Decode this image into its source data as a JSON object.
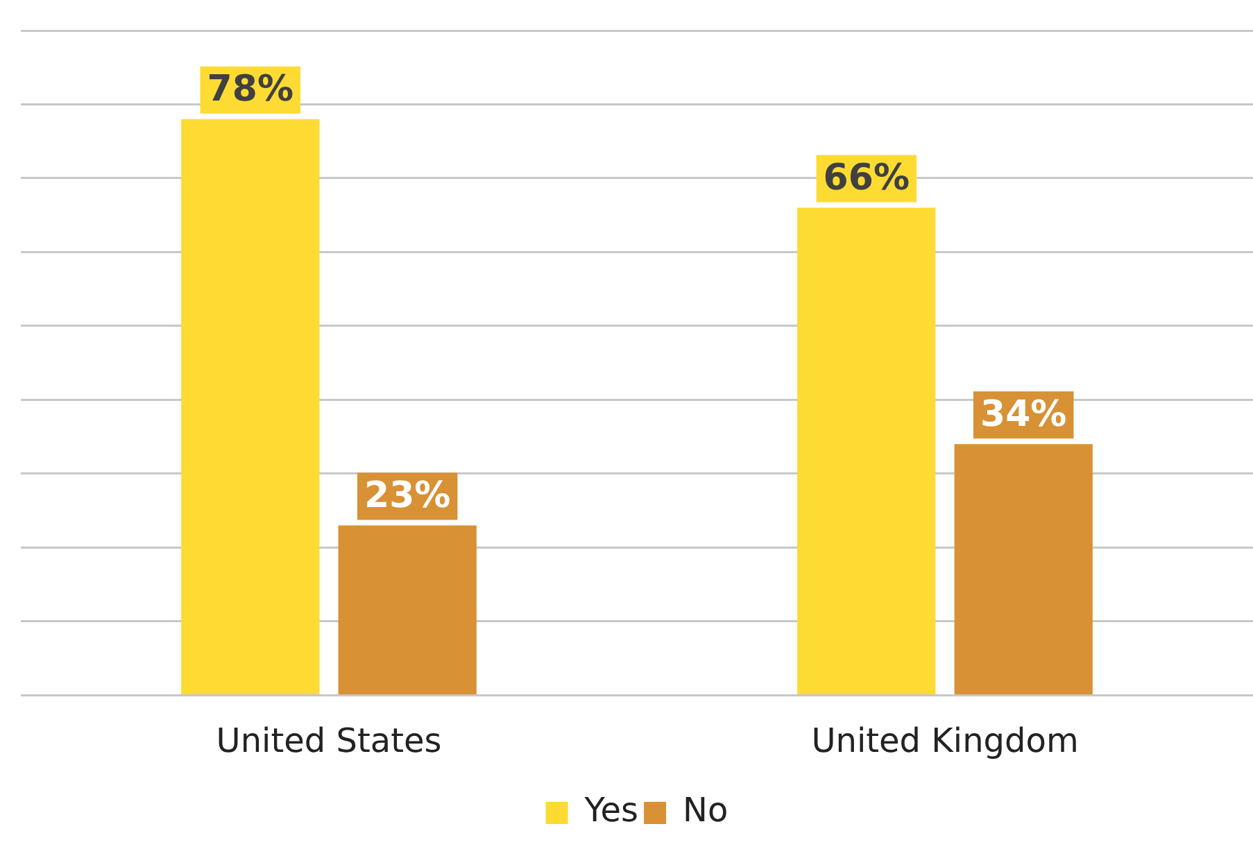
{
  "chart_data": {
    "type": "bar",
    "categories": [
      "United States",
      "United Kingdom"
    ],
    "series": [
      {
        "name": "Yes",
        "color": "#fddb33",
        "values": [
          78,
          66
        ],
        "value_labels": [
          "78%",
          "66%"
        ]
      },
      {
        "name": "No",
        "color": "#d89135",
        "values": [
          23,
          34
        ],
        "value_labels": [
          "23%",
          "34%"
        ]
      }
    ],
    "ylim": [
      0,
      90
    ],
    "yticks": [
      {
        "value": 0,
        "label": null
      },
      {
        "value": 10,
        "label": null
      },
      {
        "value": 20,
        "label": null
      },
      {
        "value": 30,
        "label": null
      },
      {
        "value": 40,
        "label": null
      },
      {
        "value": 50,
        "label": null
      },
      {
        "value": 60,
        "label": null
      },
      {
        "value": 70,
        "label": null
      },
      {
        "value": 80,
        "label": null
      },
      {
        "value": 90,
        "label": null
      }
    ],
    "tick_labels": "x",
    "grid": "y",
    "legend": "bottom"
  }
}
